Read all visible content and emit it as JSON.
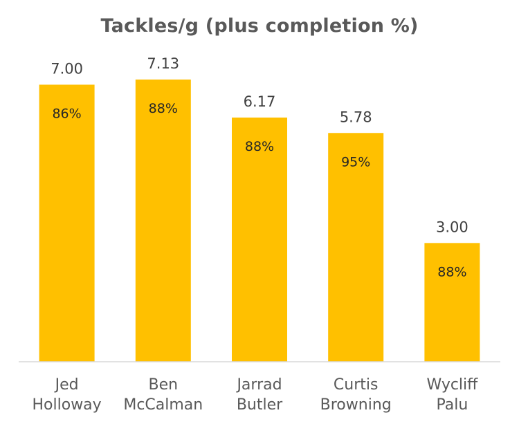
{
  "chart_data": {
    "type": "bar",
    "title": "Tackles/g (plus completion %)",
    "categories": [
      [
        "Jed",
        "Holloway"
      ],
      [
        "Ben",
        "McCalman"
      ],
      [
        "Jarrad",
        "Butler"
      ],
      [
        "Curtis",
        "Browning"
      ],
      [
        "Wycliff",
        "Palu"
      ]
    ],
    "values": [
      7.0,
      7.13,
      6.17,
      5.78,
      3.0
    ],
    "value_labels": [
      "7.00",
      "7.13",
      "6.17",
      "5.78",
      "3.00"
    ],
    "completion_labels": [
      "86%",
      "88%",
      "88%",
      "95%",
      "88%"
    ],
    "ylim": [
      0,
      7.2
    ],
    "grid": false,
    "legend": "none",
    "bar_color": "#FFC000",
    "axis_color": "#D9D9D9"
  }
}
